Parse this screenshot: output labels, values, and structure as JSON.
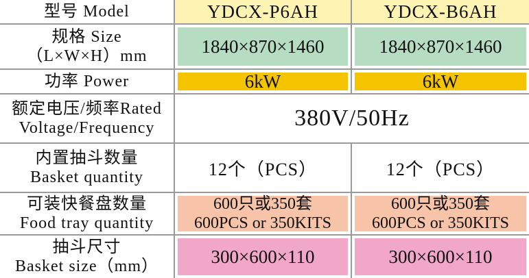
{
  "colors": {
    "model_header": "#fdf4b4",
    "size": "#b6dcc1",
    "power": "#f5c400",
    "food_tray": "#f7c4aa",
    "basket_size": "#f0a7c8",
    "grid_line": "#9a9a9a"
  },
  "rows": {
    "model": {
      "label": "型号 Model",
      "col1": "YDCX-P6AH",
      "col2": "YDCX-B6AH"
    },
    "size": {
      "label_line1": "规格 Size",
      "label_line2": "（L×W×H）mm",
      "col1": "1840×870×1460",
      "col2": "1840×870×1460"
    },
    "power": {
      "label": "功率 Power",
      "col1": "6kW",
      "col2": "6kW"
    },
    "voltage": {
      "label_line1": "额定电压/频率Rated",
      "label_line2": "Voltage/Frequency",
      "value": "380V/50Hz"
    },
    "basket_qty": {
      "label_line1": "内置抽斗数量",
      "label_line2": "Basket quantity",
      "col1": "12个（PCS）",
      "col2": "12个（PCS）"
    },
    "food_tray": {
      "label_line1": "可装快餐盘数量",
      "label_line2": "Food tray quantity",
      "col1_line1": "600只或350套",
      "col1_line2": "600PCS or 350KITS",
      "col2_line1": "600只或350套",
      "col2_line2": "600PCS or 350KITS"
    },
    "basket_size": {
      "label_line1": "抽斗尺寸",
      "label_line2": "Basket size（mm）",
      "col1": "300×600×110",
      "col2": "300×600×110"
    }
  }
}
